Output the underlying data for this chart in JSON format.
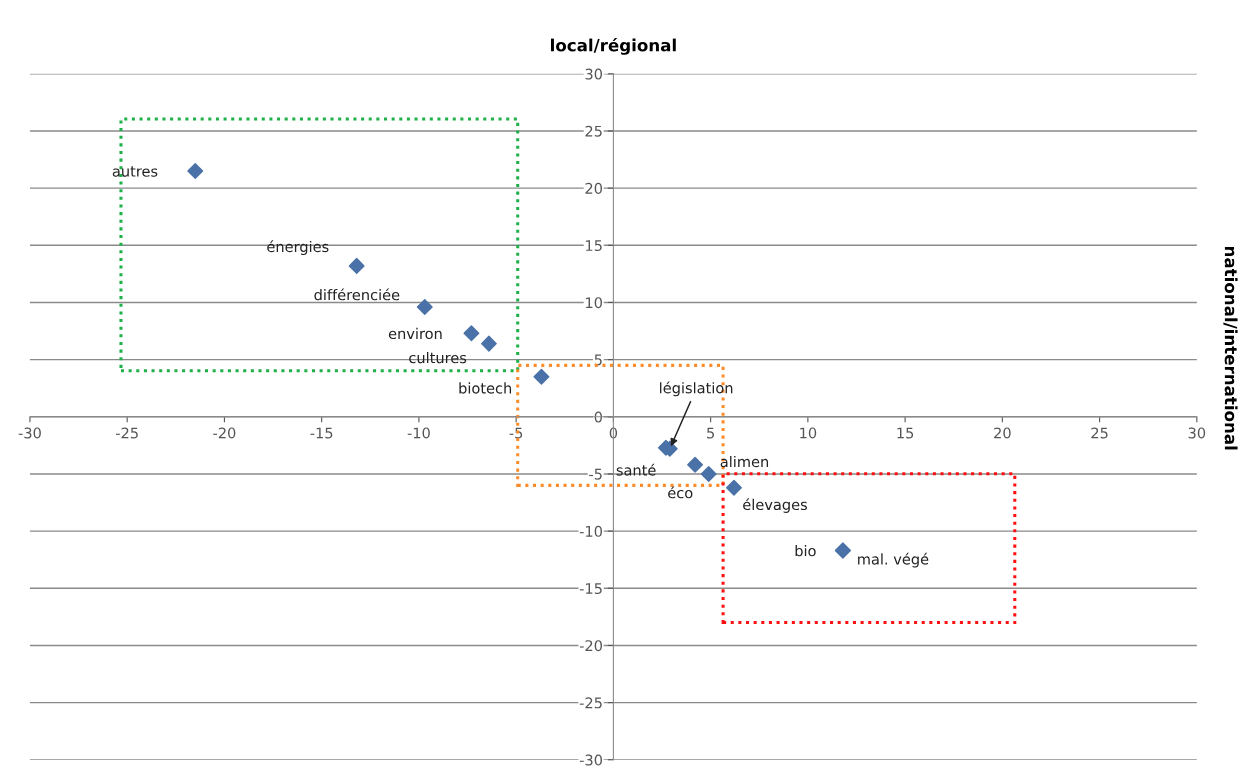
{
  "chart_data": {
    "type": "scatter",
    "xlabel": "local/régional",
    "ylabel": "national/international",
    "x": [
      -21.5,
      -13.2,
      -9.7,
      -7.3,
      -6.4,
      -3.7,
      2.9,
      2.7,
      4.2,
      4.9,
      6.2,
      11.8,
      11.8
    ],
    "series": [
      {
        "color": "#4a72a8",
        "values": [
          21.5,
          13.2,
          9.6,
          7.3,
          6.4,
          3.5,
          -2.8,
          -2.7,
          -4.2,
          -5.0,
          -6.2,
          -11.7,
          -11.7
        ]
      }
    ],
    "annotations": [
      {
        "text": "autres",
        "x": -21.5,
        "y": 21.5
      },
      {
        "text": "énergies",
        "x": -13.2,
        "y": 13.2
      },
      {
        "text": "différenciée",
        "x": -9.7,
        "y": 9.6
      },
      {
        "text": "environ",
        "x": -7.3,
        "y": 7.3
      },
      {
        "text": "cultures",
        "x": -6.4,
        "y": 6.4
      },
      {
        "text": "biotech",
        "x": -3.7,
        "y": 3.5
      },
      {
        "text": "législation",
        "x": 2.9,
        "y": -2.8
      },
      {
        "text": "santé",
        "x": 2.7,
        "y": -2.7
      },
      {
        "text": "éco",
        "x": 4.2,
        "y": -4.2
      },
      {
        "text": "alimen",
        "x": 4.9,
        "y": -5.0
      },
      {
        "text": "élevages",
        "x": 6.2,
        "y": -6.2
      },
      {
        "text": "bio",
        "x": 11.8,
        "y": -11.7
      },
      {
        "text": "mal. végé",
        "x": 11.8,
        "y": -11.7
      }
    ],
    "xlim": [
      -30,
      30
    ],
    "ylim": [
      -30,
      30
    ],
    "xticks": [
      -30,
      -25,
      -20,
      -15,
      -10,
      -5,
      0,
      5,
      10,
      15,
      20,
      25,
      30
    ],
    "yticks": [
      -30,
      -25,
      -20,
      -15,
      -10,
      -5,
      0,
      5,
      10,
      15,
      20,
      25,
      30
    ],
    "grid": "y",
    "marker": "diamond"
  }
}
